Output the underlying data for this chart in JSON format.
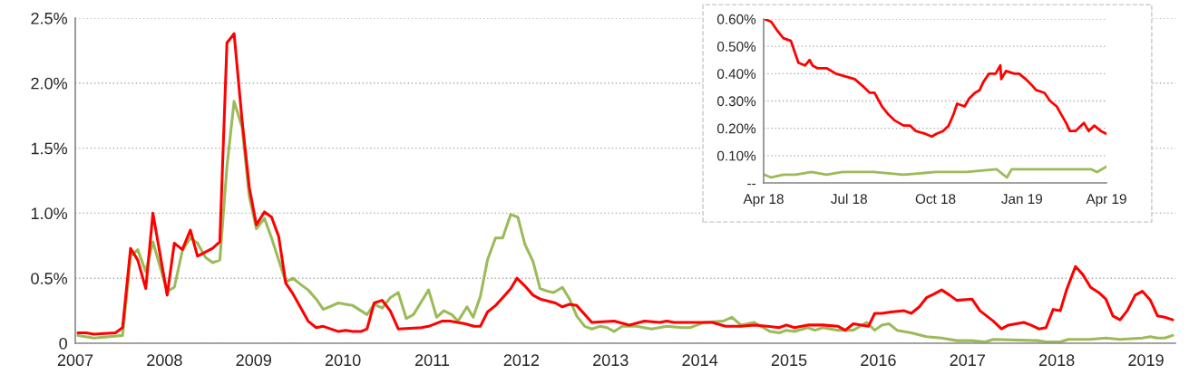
{
  "chart_data": [
    {
      "type": "line",
      "xlim": [
        2007,
        2019.33
      ],
      "xticks": [
        2007,
        2008,
        2009,
        2010,
        2011,
        2012,
        2013,
        2014,
        2015,
        2016,
        2017,
        2018,
        2019
      ],
      "ylim": [
        0,
        2.5
      ],
      "yticks": [
        0,
        {
          "value": 0.5,
          "label": "0.5%"
        },
        {
          "value": 1.0,
          "label": "1.0%"
        },
        {
          "value": 1.5,
          "label": "1.5%"
        },
        {
          "value": 2.0,
          "label": "2.0%"
        },
        {
          "value": 2.5,
          "label": "2.5%"
        }
      ],
      "grid": "y",
      "marker": "none",
      "line_style": "solid",
      "series": [
        {
          "color": "#9bbb59",
          "x": [
            2007.03,
            2007.21,
            2007.53,
            2007.62,
            2007.7,
            2007.79,
            2007.87,
            2008.03,
            2008.11,
            2008.2,
            2008.29,
            2008.37,
            2008.46,
            2008.54,
            2008.62,
            2008.7,
            2008.78,
            2008.87,
            2008.95,
            2009.03,
            2009.12,
            2009.2,
            2009.36,
            2009.44,
            2009.53,
            2009.61,
            2009.7,
            2009.78,
            2009.95,
            2010.03,
            2010.11,
            2010.27,
            2010.35,
            2010.44,
            2010.53,
            2010.62,
            2010.71,
            2010.79,
            2010.88,
            2010.96,
            2011.05,
            2011.13,
            2011.22,
            2011.29,
            2011.39,
            2011.46,
            2011.54,
            2011.62,
            2011.71,
            2011.79,
            2011.88,
            2011.96,
            2012.04,
            2012.13,
            2012.21,
            2012.29,
            2012.36,
            2012.46,
            2012.54,
            2012.62,
            2012.71,
            2012.79,
            2012.88,
            2012.96,
            2013.04,
            2013.13,
            2013.29,
            2013.46,
            2013.63,
            2013.8,
            2013.89,
            2013.97,
            2014.05,
            2014.26,
            2014.36,
            2014.46,
            2014.61,
            2014.79,
            2014.89,
            2014.97,
            2015.06,
            2015.21,
            2015.29,
            2015.38,
            2015.55,
            2015.72,
            2015.87,
            2015.96,
            2016.04,
            2016.12,
            2016.21,
            2016.37,
            2016.54,
            2016.71,
            2016.88,
            2017.04,
            2017.2,
            2017.29,
            2017.79,
            2017.88,
            2018.04,
            2018.13,
            2018.37,
            2018.55,
            2018.71,
            2018.96,
            2019.05,
            2019.13,
            2019.21,
            2019.3
          ],
          "values": [
            0.06,
            0.04,
            0.06,
            0.67,
            0.72,
            0.55,
            0.78,
            0.4,
            0.43,
            0.71,
            0.81,
            0.77,
            0.66,
            0.62,
            0.64,
            1.36,
            1.86,
            1.66,
            1.13,
            0.88,
            0.96,
            0.81,
            0.47,
            0.5,
            0.45,
            0.41,
            0.34,
            0.26,
            0.31,
            0.3,
            0.29,
            0.22,
            0.3,
            0.27,
            0.35,
            0.39,
            0.19,
            0.22,
            0.32,
            0.41,
            0.2,
            0.25,
            0.22,
            0.17,
            0.28,
            0.2,
            0.36,
            0.64,
            0.81,
            0.81,
            0.99,
            0.97,
            0.76,
            0.63,
            0.42,
            0.4,
            0.39,
            0.43,
            0.34,
            0.21,
            0.13,
            0.11,
            0.13,
            0.12,
            0.09,
            0.13,
            0.13,
            0.11,
            0.13,
            0.12,
            0.12,
            0.14,
            0.16,
            0.17,
            0.2,
            0.14,
            0.16,
            0.09,
            0.08,
            0.1,
            0.09,
            0.12,
            0.1,
            0.12,
            0.1,
            0.1,
            0.16,
            0.1,
            0.14,
            0.15,
            0.1,
            0.08,
            0.05,
            0.04,
            0.02,
            0.02,
            0.01,
            0.03,
            0.02,
            0.01,
            0.01,
            0.03,
            0.03,
            0.04,
            0.03,
            0.04,
            0.05,
            0.04,
            0.04,
            0.06
          ]
        },
        {
          "color": "#ff0000",
          "x": [
            2007.03,
            2007.12,
            2007.21,
            2007.45,
            2007.53,
            2007.62,
            2007.7,
            2007.79,
            2007.87,
            2008.03,
            2008.11,
            2008.2,
            2008.29,
            2008.37,
            2008.54,
            2008.62,
            2008.7,
            2008.78,
            2008.87,
            2008.95,
            2009.03,
            2009.12,
            2009.2,
            2009.28,
            2009.36,
            2009.44,
            2009.61,
            2009.7,
            2009.78,
            2009.95,
            2010.03,
            2010.11,
            2010.2,
            2010.27,
            2010.35,
            2010.44,
            2010.53,
            2010.62,
            2010.88,
            2010.96,
            2011.11,
            2011.2,
            2011.37,
            2011.47,
            2011.54,
            2011.62,
            2011.71,
            2011.79,
            2011.88,
            2011.95,
            2012.04,
            2012.13,
            2012.21,
            2012.38,
            2012.46,
            2012.54,
            2012.62,
            2012.79,
            2013.04,
            2013.21,
            2013.38,
            2013.55,
            2013.63,
            2013.71,
            2014.05,
            2014.14,
            2014.29,
            2014.46,
            2014.61,
            2014.76,
            2014.89,
            2014.97,
            2015.06,
            2015.21,
            2015.38,
            2015.55,
            2015.63,
            2015.72,
            2015.89,
            2015.96,
            2016.04,
            2016.14,
            2016.29,
            2016.37,
            2016.46,
            2016.54,
            2016.63,
            2016.71,
            2016.8,
            2016.88,
            2017.05,
            2017.14,
            2017.29,
            2017.38,
            2017.46,
            2017.63,
            2017.71,
            2017.8,
            2017.88,
            2017.96,
            2018.04,
            2018.11,
            2018.21,
            2018.29,
            2018.38,
            2018.47,
            2018.55,
            2018.63,
            2018.71,
            2018.79,
            2018.88,
            2018.96,
            2019.05,
            2019.13,
            2019.21,
            2019.3
          ],
          "values": [
            0.08,
            0.08,
            0.07,
            0.08,
            0.12,
            0.73,
            0.64,
            0.42,
            1.0,
            0.37,
            0.77,
            0.72,
            0.87,
            0.67,
            0.73,
            0.78,
            2.31,
            2.38,
            1.71,
            1.2,
            0.91,
            1.01,
            0.97,
            0.82,
            0.46,
            0.38,
            0.17,
            0.12,
            0.13,
            0.09,
            0.1,
            0.09,
            0.09,
            0.11,
            0.31,
            0.33,
            0.25,
            0.11,
            0.12,
            0.13,
            0.17,
            0.17,
            0.15,
            0.13,
            0.13,
            0.24,
            0.29,
            0.35,
            0.42,
            0.5,
            0.44,
            0.37,
            0.34,
            0.31,
            0.28,
            0.3,
            0.29,
            0.16,
            0.17,
            0.14,
            0.17,
            0.16,
            0.17,
            0.16,
            0.16,
            0.16,
            0.13,
            0.13,
            0.14,
            0.13,
            0.12,
            0.14,
            0.12,
            0.14,
            0.14,
            0.13,
            0.1,
            0.15,
            0.13,
            0.23,
            0.23,
            0.24,
            0.25,
            0.23,
            0.28,
            0.35,
            0.38,
            0.41,
            0.37,
            0.33,
            0.34,
            0.25,
            0.17,
            0.11,
            0.14,
            0.16,
            0.14,
            0.11,
            0.12,
            0.26,
            0.25,
            0.41,
            0.59,
            0.53,
            0.43,
            0.39,
            0.34,
            0.21,
            0.18,
            0.25,
            0.37,
            0.4,
            0.33,
            0.21,
            0.2,
            0.18
          ]
        }
      ]
    },
    {
      "type": "line",
      "xlim": [
        "2018-04-01",
        "2019-04-01"
      ],
      "xticks": [
        {
          "value": "2018-04-01",
          "label": "Apr 18"
        },
        {
          "value": "2018-07-01",
          "label": "Jul 18"
        },
        {
          "value": "2018-10-01",
          "label": "Oct 18"
        },
        {
          "value": "2019-01-01",
          "label": "Jan 19"
        },
        {
          "value": "2019-04-01",
          "label": "Apr 19"
        }
      ],
      "ylim": [
        0,
        0.6
      ],
      "yticks": [
        {
          "value": 0,
          "label": "--"
        },
        {
          "value": 0.1,
          "label": "0.10%"
        },
        {
          "value": 0.2,
          "label": "0.20%"
        },
        {
          "value": 0.3,
          "label": "0.30%"
        },
        {
          "value": 0.4,
          "label": "0.40%"
        },
        {
          "value": 0.5,
          "label": "0.50%"
        },
        {
          "value": 0.6,
          "label": "0.60%"
        }
      ],
      "grid": "y",
      "marker": "none",
      "line_style": "solid",
      "series": [
        {
          "color": "#9bbb59",
          "x": [
            "2018-04-02",
            "2018-04-09",
            "2018-04-22",
            "2018-05-05",
            "2018-05-22",
            "2018-06-07",
            "2018-06-24",
            "2018-07-27",
            "2018-08-28",
            "2018-10-01",
            "2018-11-03",
            "2018-12-05",
            "2018-12-16",
            "2018-12-21",
            "2019-01-08",
            "2019-02-10",
            "2019-03-16",
            "2019-03-22",
            "2019-04-01"
          ],
          "values": [
            0.03,
            0.02,
            0.03,
            0.03,
            0.04,
            0.03,
            0.04,
            0.04,
            0.03,
            0.04,
            0.04,
            0.05,
            0.02,
            0.05,
            0.05,
            0.05,
            0.05,
            0.04,
            0.06
          ]
        },
        {
          "color": "#ff0000",
          "x": [
            "2018-04-02",
            "2018-04-09",
            "2018-04-15",
            "2018-04-22",
            "2018-04-30",
            "2018-05-05",
            "2018-05-08",
            "2018-05-15",
            "2018-05-20",
            "2018-05-23",
            "2018-05-28",
            "2018-06-07",
            "2018-06-17",
            "2018-06-27",
            "2018-07-07",
            "2018-07-17",
            "2018-07-23",
            "2018-07-28",
            "2018-08-05",
            "2018-08-12",
            "2018-08-18",
            "2018-08-28",
            "2018-09-04",
            "2018-09-10",
            "2018-09-20",
            "2018-09-27",
            "2018-10-02",
            "2018-10-09",
            "2018-10-15",
            "2018-10-20",
            "2018-10-24",
            "2018-11-01",
            "2018-11-06",
            "2018-11-12",
            "2018-11-17",
            "2018-11-21",
            "2018-11-27",
            "2018-12-04",
            "2018-12-09",
            "2018-12-10",
            "2018-12-15",
            "2018-12-24",
            "2018-12-29",
            "2019-01-05",
            "2019-01-11",
            "2019-01-16",
            "2019-01-25",
            "2019-01-31",
            "2019-02-07",
            "2019-02-12",
            "2019-02-17",
            "2019-02-21",
            "2019-02-27",
            "2019-03-08",
            "2019-03-13",
            "2019-03-19",
            "2019-03-26",
            "2019-04-01"
          ],
          "values": [
            0.6,
            0.59,
            0.56,
            0.53,
            0.52,
            0.47,
            0.44,
            0.43,
            0.45,
            0.43,
            0.42,
            0.42,
            0.4,
            0.39,
            0.38,
            0.35,
            0.33,
            0.33,
            0.28,
            0.25,
            0.23,
            0.21,
            0.21,
            0.19,
            0.18,
            0.17,
            0.18,
            0.19,
            0.21,
            0.25,
            0.29,
            0.28,
            0.31,
            0.33,
            0.34,
            0.37,
            0.4,
            0.4,
            0.43,
            0.38,
            0.41,
            0.4,
            0.4,
            0.38,
            0.36,
            0.34,
            0.33,
            0.3,
            0.28,
            0.25,
            0.22,
            0.19,
            0.19,
            0.22,
            0.19,
            0.21,
            0.19,
            0.18
          ]
        }
      ]
    }
  ]
}
